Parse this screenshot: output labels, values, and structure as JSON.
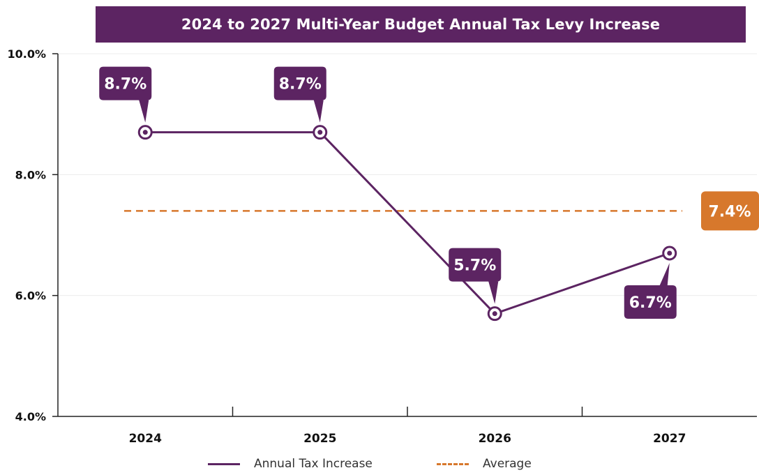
{
  "colors": {
    "line": "#5c2462",
    "average": "#d7782c",
    "title_bg": "#5c2462",
    "axis": "#222222"
  },
  "chart_data": {
    "type": "line",
    "title": "2024 to 2027 Multi-Year Budget Annual Tax Levy Increase",
    "categories": [
      "2024",
      "2025",
      "2026",
      "2027"
    ],
    "series": [
      {
        "name": "Annual Tax Increase",
        "values": [
          8.7,
          8.7,
          5.7,
          6.7
        ],
        "labels": [
          "8.7%",
          "8.7%",
          "5.7%",
          "6.7%"
        ]
      }
    ],
    "average": {
      "name": "Average",
      "value": 7.4,
      "label": "7.4%"
    },
    "y_ticks": [
      "4.0%",
      "6.0%",
      "8.0%",
      "10.0%"
    ],
    "y_tick_values": [
      4,
      6,
      8,
      10
    ],
    "ylim": [
      4,
      10
    ],
    "grid": true,
    "legend_position": "bottom"
  }
}
